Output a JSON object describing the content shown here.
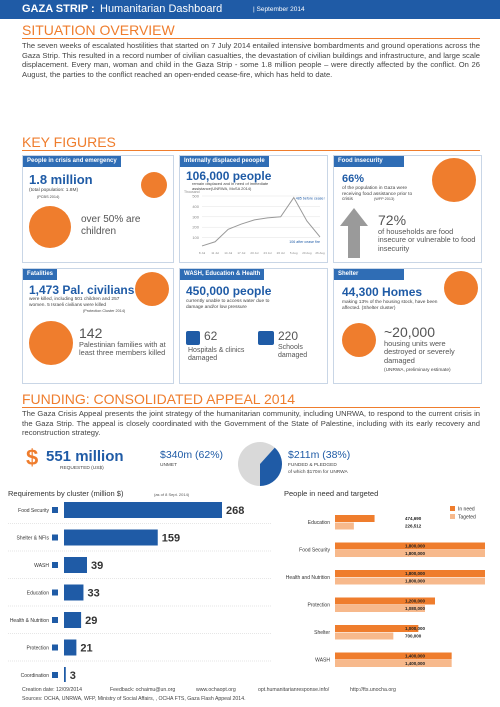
{
  "header": {
    "title": "GAZA STRIP :",
    "subtitle": "Humanitarian Dashboard",
    "date": "| September 2014"
  },
  "situation": {
    "heading": "SITUATION OVERVIEW",
    "text": "The seven weeks of escalated hostilities that started on 7 July 2014 entailed intensive bombardments and ground operations across the Gaza Strip. This resulted in a record number of civilian casualties, the devastation of civilian buildings and infrastructure, and large scale displacement. Every man, woman and child in the Gaza Strip - some 1.8 million people – were directly affected by the conflict. On 26 August, the parties to the conflict reached an open-ended cease-fire, which has held to date."
  },
  "key_figures": {
    "heading": "KEY FIGURES"
  },
  "panels": {
    "people": {
      "title": "People in crisis and emergency",
      "value": "1.8 million",
      "note": "(total population: 1.8M)",
      "source": "(PCBS 2014)",
      "text": "over 50% are children"
    },
    "idp": {
      "title": "Internally displaced peoople",
      "value": "106,000 people",
      "note": "remain displaced and in need of immediate assistance(UNRWA, MoSA 2014)"
    },
    "food": {
      "title": "Food insecurity",
      "value": "66%",
      "text": "of the population in Gaza were receiving food assistance prior to crisis",
      "source": "(WFP 2013)",
      "value2": "72%",
      "text2": "of households are food insecure or vulnerable to food insecurity"
    },
    "fatalities": {
      "title": "Fatalities",
      "value": "1,473 Pal. civilians",
      "text": "were killed, including 501 children and 257 women. 5 Israeli civilians were killed",
      "source": "(Protection Cluster 2014)",
      "value2": "142",
      "text2": "Palestinian families with at least three members killed"
    },
    "wash": {
      "title": "WASH, Education & Health",
      "value": "450,000 people",
      "text": "currently unable to access water due to damage and/or low pressure",
      "hospitals": "62",
      "hospitals_text": "Hospitals & clinics damaged",
      "schools": "220",
      "schools_text": "Schools damaged"
    },
    "shelter": {
      "title": "Shelter",
      "value": "44,300 Homes",
      "text": "making 13% of the housing stock, have been affected.  (Shelter cluster)",
      "value2": "~20,000",
      "text2": "housing units were destroyed or severely damaged",
      "source": "(UNRWA, preliminary estimate)"
    }
  },
  "funding": {
    "heading": "FUNDING: CONSOLIDATED APPEAL 2014",
    "text": "The Gaza Crisis Appeal presents the joint strategy of the humanitarian community, including UNRWA, to respond to the current crisis in the Gaza Strip. The appeal is closely coordinated with the Government of the State of Palestine, including with its early recovery and reconstruction strategy.",
    "currency": "$",
    "requested": "551 million",
    "requested_label": "REQUESTED (US$)",
    "funded_note": "of which $170m for UNRWA"
  },
  "chart_data": [
    {
      "type": "line",
      "y_label": "Thousand",
      "categories": [
        "8 Jul",
        "11 Jul",
        "14 Jul",
        "17 Jul",
        "20 Jul",
        "23 Jul",
        "26 Jul",
        "5 Aug",
        "20 Aug",
        "26 Aug"
      ],
      "values": [
        20,
        60,
        180,
        230,
        270,
        290,
        300,
        485,
        260,
        106
      ],
      "ylim": [
        0,
        500
      ],
      "yticks": [
        100,
        200,
        300,
        400,
        500
      ],
      "grid": true,
      "color": "#999999",
      "annotations": [
        "485 before cease fire",
        "106 after cease fire"
      ]
    },
    {
      "type": "pie",
      "categories": [
        "UNMET",
        "FUNDED & PLEDGED"
      ],
      "values": [
        340,
        211
      ],
      "value_labels": [
        "$340m (62%)",
        "$211m (38%)"
      ],
      "colors": [
        "#d9d9d9",
        "#1f5ba6"
      ]
    },
    {
      "type": "bar",
      "orientation": "horizontal",
      "title": "Requirements by cluster (million $)",
      "note": "(as of 8 Sept. 2014)",
      "categories": [
        "Food Security",
        "Shelter & NFIs",
        "WASH",
        "Education",
        "Health & Nutrition",
        "Protection",
        "Coordination"
      ],
      "values": [
        268,
        159,
        39,
        33,
        29,
        21,
        3
      ],
      "color": "#1f5ba6"
    },
    {
      "type": "bar",
      "orientation": "horizontal",
      "title": "People in need and targeted",
      "categories": [
        "Education",
        "Food Security",
        "Health and Nutrition",
        "Protection",
        "Shelter",
        "WASH"
      ],
      "series": [
        {
          "name": "In need",
          "color": "#ef7d2d",
          "values": [
            474690,
            1800000,
            1800000,
            1200000,
            1000000,
            1400000
          ],
          "value_labels": [
            "474,690",
            "1,800,000",
            "1,800,000",
            "1,200,000",
            "1,000,000",
            "1,400,000"
          ]
        },
        {
          "name": "Tageted",
          "color": "#f7b98c",
          "values": [
            226512,
            1800000,
            1800000,
            1080000,
            700000,
            1400000
          ],
          "value_labels": [
            "226,512",
            "1,800,000",
            "1,800,000",
            "1,080,000",
            "700,000",
            "1,400,000"
          ]
        }
      ]
    }
  ],
  "footer": {
    "created": "Creation date: 12/09/2014",
    "feedback": "Feedback: ochaimu@un.org",
    "site1": "www.ochaopt.org",
    "site2": "opt.humanitarianresponse.info/",
    "site3": "http://fts.unocha.org",
    "sources": "Sources: OCHA, UNRWA, WFP, Ministry of Social Affairs, , OCHA FTS, Gaza Flash Appeal 2014."
  }
}
